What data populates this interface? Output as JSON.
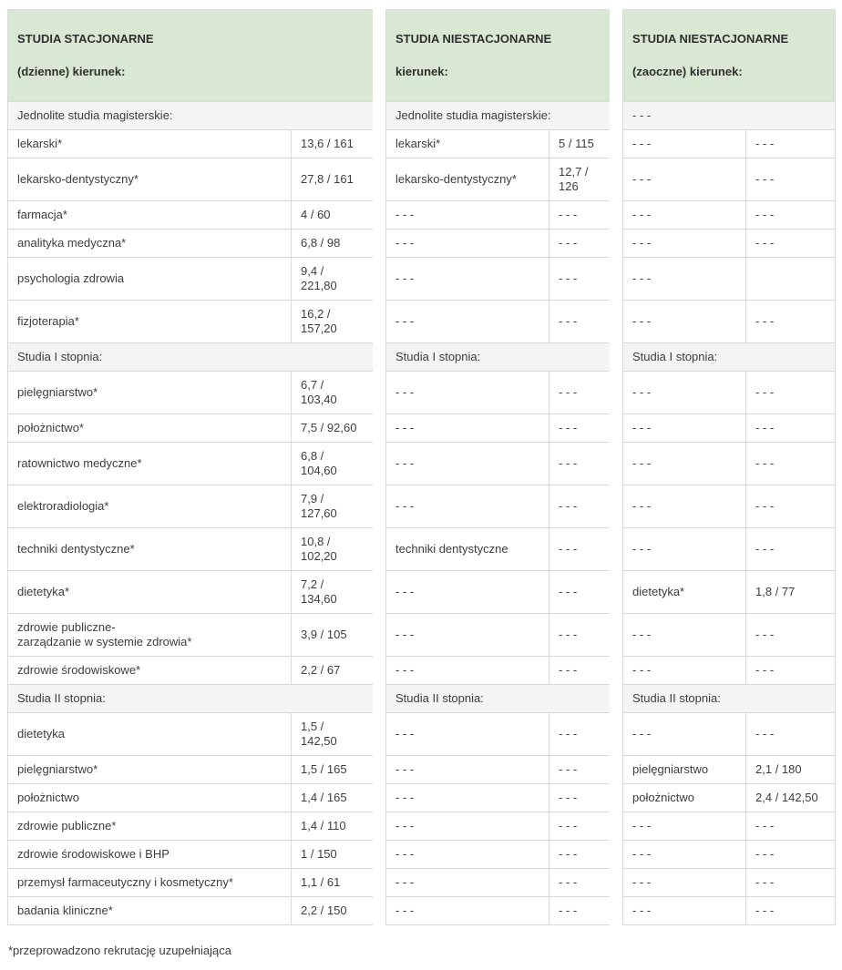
{
  "colors": {
    "header_bg": "#d9e8d2",
    "section_bg": "#f4f4f4",
    "border": "#d9d9d9",
    "text": "#3d3d3d"
  },
  "table": {
    "headers": [
      {
        "line1": "STUDIA STACJONARNE",
        "line2": "(dzienne) kierunek:"
      },
      {
        "line1": "STUDIA NIESTACJONARNE",
        "line2": "kierunek:"
      },
      {
        "line1": "STUDIA NIESTACJONARNE",
        "line2": "(zaoczne) kierunek:"
      }
    ],
    "sections": [
      {
        "titles": [
          "Jednolite studia magisterskie:",
          "Jednolite studia magisterskie:",
          "- - -"
        ],
        "rows": [
          [
            "lekarski*",
            "13,6 / 161",
            "lekarski*",
            "5 / 115",
            "- - -",
            "- - -"
          ],
          [
            "lekarsko-dentystyczny*",
            "27,8 / 161",
            "lekarsko-dentystyczny*",
            "12,7 / 126",
            "- - -",
            "- - -"
          ],
          [
            "farmacja*",
            "4 / 60",
            "- - -",
            "- - -",
            "- - -",
            "- - -"
          ],
          [
            "analityka medyczna*",
            "6,8 / 98",
            "- - -",
            "- - -",
            "- - -",
            "- - -"
          ],
          [
            "psychologia zdrowia",
            "9,4 / 221,80",
            "- - -",
            "- - -",
            "- - -",
            ""
          ],
          [
            "fizjoterapia*",
            "16,2 / 157,20",
            "- - -",
            "- - -",
            "- - -",
            "- - -"
          ]
        ]
      },
      {
        "titles": [
          "Studia I stopnia:",
          "Studia I stopnia:",
          "Studia I stopnia:"
        ],
        "rows": [
          [
            "pielęgniarstwo*",
            "6,7 / 103,40",
            "- - -",
            "- - -",
            "- - -",
            "- - -"
          ],
          [
            "położnictwo*",
            "7,5 / 92,60",
            "- - -",
            "- - -",
            "- - -",
            "- - -"
          ],
          [
            "ratownictwo medyczne*",
            "6,8 / 104,60",
            "- - -",
            "- - -",
            "- - -",
            "- - -"
          ],
          [
            "elektroradiologia*",
            "7,9 / 127,60",
            "- - -",
            "- - -",
            "- - -",
            "- - -"
          ],
          [
            "techniki dentystyczne*",
            "10,8 / 102,20",
            "techniki dentystyczne",
            "- - -",
            "- - -",
            "- - -"
          ],
          [
            "dietetyka*",
            "7,2 / 134,60",
            "- - -",
            "- - -",
            "dietetyka*",
            "1,8 / 77"
          ],
          [
            "zdrowie publiczne-\nzarządzanie w systemie zdrowia*",
            "3,9 / 105",
            "- - -",
            "- - -",
            "- - -",
            "- - -"
          ],
          [
            "zdrowie środowiskowe*",
            "2,2 / 67",
            "- - -",
            "- - -",
            "- - -",
            "- - -"
          ]
        ]
      },
      {
        "titles": [
          "Studia II stopnia:",
          "Studia II stopnia:",
          "Studia II stopnia:"
        ],
        "rows": [
          [
            "dietetyka",
            "1,5 / 142,50",
            "- - -",
            "- - -",
            "- - -",
            "- - -"
          ],
          [
            "pielęgniarstwo*",
            "1,5 / 165",
            "- - -",
            "- - -",
            "pielęgniarstwo",
            "2,1 / 180"
          ],
          [
            "położnictwo",
            "1,4 / 165",
            "- - -",
            "- - -",
            "położnictwo",
            "2,4 / 142,50"
          ],
          [
            "zdrowie publiczne*",
            "1,4 / 110",
            "- - -",
            "- - -",
            "- - -",
            "- - -"
          ],
          [
            "zdrowie środowiskowe i BHP",
            "1 / 150",
            "- - -",
            "- - -",
            "- - -",
            "- - -"
          ],
          [
            "przemysł farmaceutyczny i kosmetyczny*",
            "1,1 / 61",
            "- - -",
            "- - -",
            "- - -",
            "- - -"
          ],
          [
            "badania kliniczne*",
            "2,2 / 150",
            "- - -",
            "- - -",
            "- - -",
            "- - -"
          ]
        ]
      }
    ],
    "footnote": "*przeprowadzono rekrutację uzupełniająca"
  }
}
